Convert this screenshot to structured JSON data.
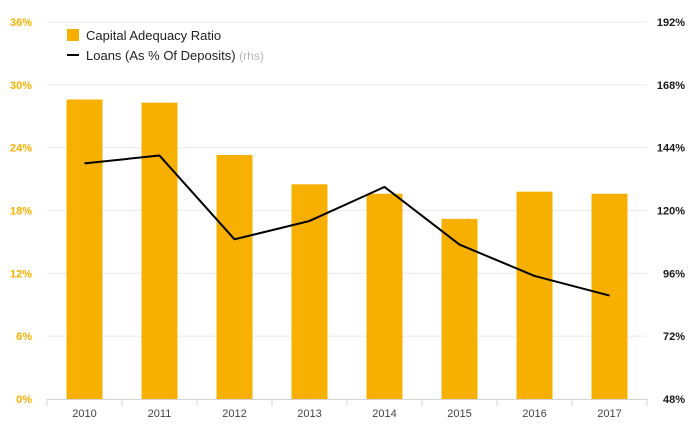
{
  "chart_data": {
    "type": "bar",
    "categories": [
      "2010",
      "2011",
      "2012",
      "2013",
      "2014",
      "2015",
      "2016",
      "2017"
    ],
    "series": [
      {
        "name": "Capital Adequacy Ratio",
        "type": "bar",
        "axis": "left",
        "color": "#f8b000",
        "values": [
          28.6,
          28.3,
          23.3,
          20.5,
          19.6,
          17.2,
          19.8,
          19.6
        ]
      },
      {
        "name": "Loans (As % Of Deposits)",
        "legend_suffix": "(rhs)",
        "type": "line",
        "axis": "right",
        "color": "#000000",
        "values": [
          138.0,
          141.0,
          109.0,
          116.0,
          129.0,
          107.0,
          95.0,
          87.5
        ]
      }
    ],
    "left_axis": {
      "ylim": [
        0,
        36
      ],
      "ticks": [
        0,
        6,
        12,
        18,
        24,
        30,
        36
      ],
      "tick_labels": [
        "0%",
        "6%",
        "12%",
        "18%",
        "24%",
        "30%",
        "36%"
      ],
      "color": "#f8b000"
    },
    "right_axis": {
      "ylim": [
        48,
        192
      ],
      "ticks": [
        48,
        72,
        96,
        120,
        144,
        168,
        192
      ],
      "tick_labels": [
        "48%",
        "72%",
        "96%",
        "120%",
        "144%",
        "168%",
        "192%"
      ],
      "color": "#1a1a1a"
    },
    "grid": true,
    "legend_position": "top-left"
  }
}
